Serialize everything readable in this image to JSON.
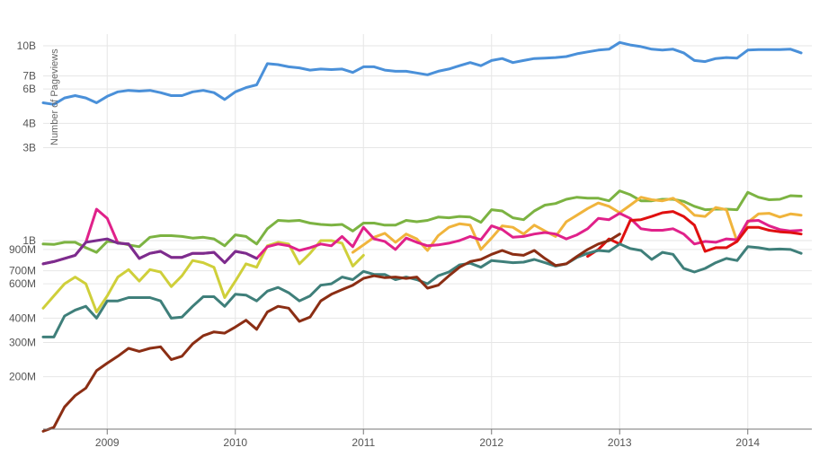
{
  "chart_data": {
    "type": "line",
    "title": "",
    "ylabel": "Number of Pageviews",
    "xlabel": "",
    "yscale": "log",
    "ylim": [
      100000000,
      12000000000
    ],
    "xlim": [
      "2008-07-01",
      "2014-06-01"
    ],
    "grid": "on",
    "legend": "none",
    "x_tick_labels": [
      "2009",
      "2010",
      "2011",
      "2012",
      "2013",
      "2014"
    ],
    "x_tick_dates": [
      "2009-01-01",
      "2010-01-01",
      "2011-01-01",
      "2012-01-01",
      "2013-01-01",
      "2014-01-01"
    ],
    "y_tick_labels": [
      "200M",
      "300M",
      "400M",
      "600M",
      "700M",
      "900M",
      "1B",
      "3B",
      "4B",
      "6B",
      "7B",
      "10B"
    ],
    "y_tick_values": [
      200000000,
      300000000,
      400000000,
      600000000,
      700000000,
      900000000,
      1000000000,
      3000000000,
      4000000000,
      6000000000,
      7000000000,
      10000000000
    ],
    "series": [
      {
        "color": "#4a90d9",
        "start": "2008-07",
        "values": [
          5100000000.0,
          5000000000.0,
          5400000000.0,
          5550000000.0,
          5400000000.0,
          5100000000.0,
          5500000000.0,
          5800000000.0,
          5900000000.0,
          5850000000.0,
          5900000000.0,
          5750000000.0,
          5550000000.0,
          5550000000.0,
          5800000000.0,
          5900000000.0,
          5750000000.0,
          5300000000.0,
          5800000000.0,
          6100000000.0,
          6300000000.0,
          8100000000.0,
          8000000000.0,
          7800000000.0,
          7700000000.0,
          7500000000.0,
          7600000000.0,
          7550000000.0,
          7600000000.0,
          7300000000.0,
          7800000000.0,
          7800000000.0,
          7500000000.0,
          7400000000.0,
          7400000000.0,
          7250000000.0,
          7100000000.0,
          7400000000.0,
          7600000000.0,
          7900000000.0,
          8200000000.0,
          7900000000.0,
          8400000000.0,
          8600000000.0,
          8200000000.0,
          8400000000.0,
          8600000000.0,
          8650000000.0,
          8700000000.0,
          8800000000.0,
          9100000000.0,
          9300000000.0,
          9500000000.0,
          9600000000.0,
          10400000000.0,
          10100000000.0,
          9900000000.0,
          9600000000.0,
          9500000000.0,
          9600000000.0,
          9200000000.0,
          8400000000.0,
          8300000000.0,
          8600000000.0,
          8700000000.0,
          8650000000.0,
          9500000000.0,
          9550000000.0,
          9550000000.0,
          9550000000.0,
          9600000000.0,
          9200000000.0
        ]
      },
      {
        "color": "#7cb342",
        "start": "2008-07",
        "values": [
          960000000.0,
          955000000.0,
          980000000.0,
          980000000.0,
          920000000.0,
          870000000.0,
          990000000.0,
          980000000.0,
          950000000.0,
          930000000.0,
          1040000000.0,
          1060000000.0,
          1060000000.0,
          1050000000.0,
          1030000000.0,
          1040000000.0,
          1020000000.0,
          940000000.0,
          1070000000.0,
          1050000000.0,
          960000000.0,
          1150000000.0,
          1270000000.0,
          1260000000.0,
          1270000000.0,
          1230000000.0,
          1210000000.0,
          1200000000.0,
          1210000000.0,
          1120000000.0,
          1230000000.0,
          1230000000.0,
          1200000000.0,
          1200000000.0,
          1270000000.0,
          1250000000.0,
          1270000000.0,
          1320000000.0,
          1310000000.0,
          1330000000.0,
          1320000000.0,
          1240000000.0,
          1440000000.0,
          1420000000.0,
          1310000000.0,
          1280000000.0,
          1420000000.0,
          1520000000.0,
          1550000000.0,
          1630000000.0,
          1670000000.0,
          1650000000.0,
          1650000000.0,
          1600000000.0,
          1800000000.0,
          1720000000.0,
          1600000000.0,
          1600000000.0,
          1630000000.0,
          1630000000.0,
          1590000000.0,
          1500000000.0,
          1440000000.0,
          1450000000.0,
          1450000000.0,
          1440000000.0,
          1770000000.0,
          1670000000.0,
          1620000000.0,
          1630000000.0,
          1700000000.0,
          1690000000.0
        ]
      },
      {
        "color": "#f0b43c",
        "start": "2010-12",
        "values": [
          870000000.0,
          950000000.0,
          1040000000.0,
          1090000000.0,
          980000000.0,
          1080000000.0,
          1020000000.0,
          890000000.0,
          1060000000.0,
          1170000000.0,
          1220000000.0,
          1200000000.0,
          900000000.0,
          1030000000.0,
          1190000000.0,
          1170000000.0,
          1080000000.0,
          1200000000.0,
          1120000000.0,
          1050000000.0,
          1250000000.0,
          1350000000.0,
          1460000000.0,
          1560000000.0,
          1500000000.0,
          1390000000.0,
          1520000000.0,
          1670000000.0,
          1620000000.0,
          1600000000.0,
          1650000000.0,
          1520000000.0,
          1350000000.0,
          1330000000.0,
          1480000000.0,
          1440000000.0,
          990000000.0,
          1240000000.0,
          1370000000.0,
          1380000000.0,
          1320000000.0,
          1370000000.0,
          1350000000.0
        ]
      },
      {
        "color": "#cfcf3a",
        "start": "2008-07",
        "values": [
          450000000.0,
          520000000.0,
          600000000.0,
          650000000.0,
          600000000.0,
          430000000.0,
          520000000.0,
          650000000.0,
          710000000.0,
          620000000.0,
          710000000.0,
          690000000.0,
          580000000.0,
          660000000.0,
          790000000.0,
          770000000.0,
          730000000.0,
          510000000.0,
          620000000.0,
          760000000.0,
          730000000.0,
          940000000.0,
          980000000.0,
          960000000.0,
          760000000.0,
          860000000.0,
          1000000000.0,
          1000000000.0,
          970000000.0,
          740000000.0,
          840000000.0
        ]
      },
      {
        "color": "#e0218a",
        "start": "2008-07",
        "values": [
          760000000.0,
          780000000.0,
          810000000.0,
          840000000.0,
          980000000.0,
          1450000000.0,
          1300000000.0,
          970000000.0,
          960000000.0,
          810000000.0,
          860000000.0,
          880000000.0,
          820000000.0,
          820000000.0,
          860000000.0,
          860000000.0,
          870000000.0,
          770000000.0,
          880000000.0,
          860000000.0,
          810000000.0,
          930000000.0,
          960000000.0,
          940000000.0,
          890000000.0,
          920000000.0,
          960000000.0,
          940000000.0,
          1050000000.0,
          930000000.0,
          1170000000.0,
          1020000000.0,
          990000000.0,
          900000000.0,
          1030000000.0,
          980000000.0,
          940000000.0,
          950000000.0,
          970000000.0,
          1000000000.0,
          1050000000.0,
          1010000000.0,
          1190000000.0,
          1140000000.0,
          1040000000.0,
          1050000000.0,
          1080000000.0,
          1100000000.0,
          1080000000.0,
          1020000000.0,
          1070000000.0,
          1150000000.0,
          1300000000.0,
          1280000000.0,
          1380000000.0,
          1300000000.0,
          1150000000.0,
          1130000000.0,
          1130000000.0,
          1150000000.0,
          1080000000.0,
          960000000.0,
          990000000.0,
          980000000.0,
          1020000000.0,
          1010000000.0,
          1260000000.0,
          1270000000.0,
          1190000000.0,
          1140000000.0,
          1120000000.0,
          1130000000.0
        ]
      },
      {
        "color": "#7b2d8e",
        "start": "2008-07",
        "values": [
          760000000.0,
          780000000.0,
          810000000.0,
          840000000.0,
          980000000.0,
          1000000000.0,
          1020000000.0,
          970000000.0,
          960000000.0,
          810000000.0,
          860000000.0,
          880000000.0,
          820000000.0,
          820000000.0,
          860000000.0,
          860000000.0,
          870000000.0,
          770000000.0,
          880000000.0,
          860000000.0,
          810000000.0
        ]
      },
      {
        "color": "#e01010",
        "start": "2012-10",
        "values": [
          830000000.0,
          900000000.0,
          1020000000.0,
          960000000.0,
          1270000000.0,
          1280000000.0,
          1330000000.0,
          1390000000.0,
          1410000000.0,
          1330000000.0,
          1200000000.0,
          880000000.0,
          920000000.0,
          920000000.0,
          990000000.0,
          1170000000.0,
          1170000000.0,
          1130000000.0,
          1110000000.0,
          1100000000.0,
          1080000000.0
        ]
      },
      {
        "color": "#3f7f7a",
        "start": "2008-07",
        "values": [
          320000000.0,
          320000000.0,
          410000000.0,
          440000000.0,
          460000000.0,
          400000000.0,
          490000000.0,
          490000000.0,
          510000000.0,
          510000000.0,
          510000000.0,
          490000000.0,
          400000000.0,
          405000000.0,
          460000000.0,
          515000000.0,
          515000000.0,
          460000000.0,
          530000000.0,
          525000000.0,
          490000000.0,
          550000000.0,
          575000000.0,
          540000000.0,
          490000000.0,
          520000000.0,
          590000000.0,
          600000000.0,
          650000000.0,
          630000000.0,
          695000000.0,
          670000000.0,
          670000000.0,
          630000000.0,
          650000000.0,
          630000000.0,
          600000000.0,
          660000000.0,
          690000000.0,
          750000000.0,
          765000000.0,
          730000000.0,
          790000000.0,
          780000000.0,
          770000000.0,
          775000000.0,
          800000000.0,
          770000000.0,
          740000000.0,
          760000000.0,
          820000000.0,
          860000000.0,
          890000000.0,
          880000000.0,
          960000000.0,
          910000000.0,
          890000000.0,
          800000000.0,
          870000000.0,
          850000000.0,
          720000000.0,
          690000000.0,
          720000000.0,
          770000000.0,
          810000000.0,
          790000000.0,
          930000000.0,
          920000000.0,
          900000000.0,
          905000000.0,
          900000000.0,
          860000000.0
        ]
      },
      {
        "color": "#8b2e14",
        "start": "2008-07",
        "values": [
          105000000.0,
          110000000.0,
          140000000.0,
          160000000.0,
          175000000.0,
          215000000.0,
          235000000.0,
          255000000.0,
          280000000.0,
          270000000.0,
          280000000.0,
          285000000.0,
          245000000.0,
          255000000.0,
          295000000.0,
          325000000.0,
          340000000.0,
          335000000.0,
          360000000.0,
          390000000.0,
          350000000.0,
          430000000.0,
          460000000.0,
          450000000.0,
          385000000.0,
          405000000.0,
          490000000.0,
          530000000.0,
          560000000.0,
          590000000.0,
          640000000.0,
          660000000.0,
          645000000.0,
          650000000.0,
          640000000.0,
          650000000.0,
          570000000.0,
          590000000.0,
          660000000.0,
          730000000.0,
          780000000.0,
          800000000.0,
          850000000.0,
          890000000.0,
          850000000.0,
          840000000.0,
          890000000.0,
          810000000.0,
          745000000.0,
          760000000.0,
          830000000.0,
          900000000.0,
          960000000.0,
          1000000000.0,
          1080000000.0
        ]
      }
    ]
  }
}
